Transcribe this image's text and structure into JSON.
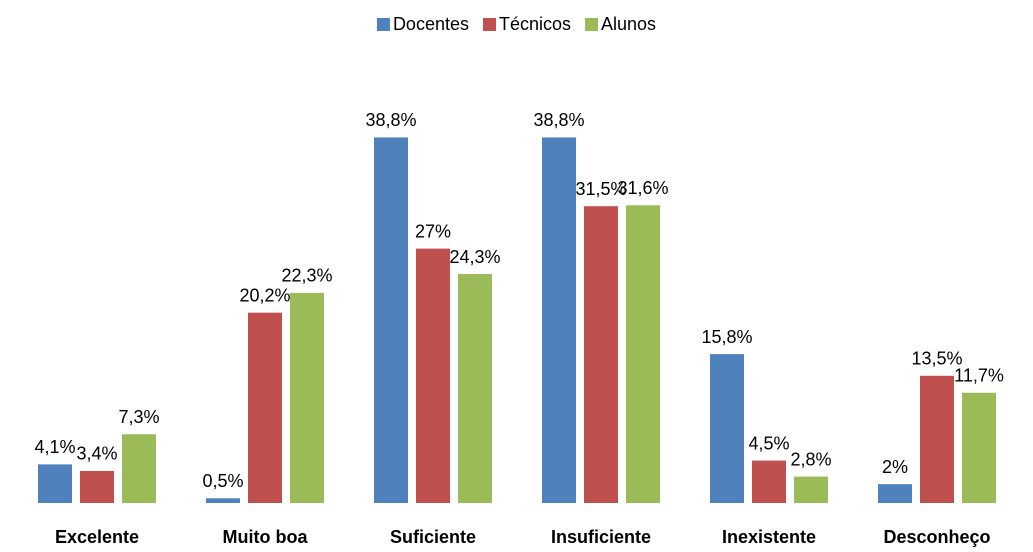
{
  "chart_data": {
    "type": "bar",
    "categories": [
      "Excelente",
      "Muito boa",
      "Suficiente",
      "Insuficiente",
      "Inexistente",
      "Desconheço"
    ],
    "series": [
      {
        "name": "Docentes",
        "color": "#4f81bd",
        "values": [
          4.1,
          0.5,
          38.8,
          38.8,
          15.8,
          2
        ],
        "value_labels": [
          "4,1%",
          "0,5%",
          "38,8%",
          "38,8%",
          "15,8%",
          "2%"
        ]
      },
      {
        "name": "Técnicos",
        "color": "#c0504d",
        "values": [
          3.4,
          20.2,
          27,
          31.5,
          4.5,
          13.5
        ],
        "value_labels": [
          "3,4%",
          "20,2%",
          "27%",
          "31,5%",
          "4,5%",
          "13,5%"
        ]
      },
      {
        "name": "Alunos",
        "color": "#9bbb59",
        "values": [
          7.3,
          22.3,
          24.3,
          31.6,
          2.8,
          11.7
        ],
        "value_labels": [
          "7,3%",
          "22,3%",
          "24,3%",
          "31,6%",
          "2,8%",
          "11,7%"
        ]
      }
    ],
    "ylim": [
      0,
      45
    ],
    "legend": "top"
  }
}
